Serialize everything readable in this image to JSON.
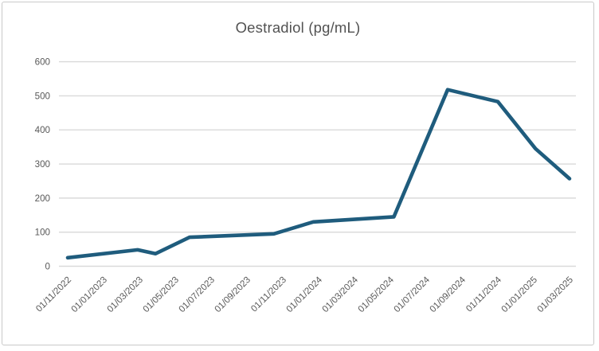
{
  "chart": {
    "title": "Oestradiol (pg/mL)"
  },
  "chart_data": {
    "type": "line",
    "title": "Oestradiol (pg/mL)",
    "xlabel": "",
    "ylabel": "",
    "ylim": [
      0,
      600
    ],
    "y_ticks": [
      0,
      100,
      200,
      300,
      400,
      500,
      600
    ],
    "x_tick_labels": [
      "01/11/2022",
      "01/01/2023",
      "01/03/2023",
      "01/05/2023",
      "01/07/2023",
      "01/09/2023",
      "01/11/2023",
      "01/01/2024",
      "01/03/2024",
      "01/05/2024",
      "01/07/2024",
      "01/09/2024",
      "01/11/2024",
      "01/01/2025",
      "01/03/2025"
    ],
    "x_tick_interval": "2 months",
    "grid": "horizontal",
    "legend": "none",
    "series": [
      {
        "name": "Oestradiol",
        "points": [
          {
            "approx_date": "01/11/2022",
            "x_months": 0,
            "y": 25
          },
          {
            "approx_date": "27/02/2023",
            "x_months": 3.9,
            "y": 48
          },
          {
            "approx_date": "29/03/2023",
            "x_months": 4.9,
            "y": 37
          },
          {
            "approx_date": "25/05/2023",
            "x_months": 6.8,
            "y": 85
          },
          {
            "approx_date": "16/10/2023",
            "x_months": 11.5,
            "y": 95
          },
          {
            "approx_date": "22/12/2023",
            "x_months": 13.7,
            "y": 130
          },
          {
            "approx_date": "07/05/2024",
            "x_months": 18.2,
            "y": 145
          },
          {
            "approx_date": "06/08/2024",
            "x_months": 21.2,
            "y": 518
          },
          {
            "approx_date": "01/11/2024",
            "x_months": 24,
            "y": 483
          },
          {
            "approx_date": "04/01/2025",
            "x_months": 26.1,
            "y": 345
          },
          {
            "approx_date": "01/03/2025",
            "x_months": 28,
            "y": 257
          }
        ]
      }
    ],
    "colors": {
      "line": "#1f5c7d",
      "gridline": "#d9d9d9",
      "tick_text": "#595959",
      "title_text": "#525252",
      "frame_border": "#c9c9c9",
      "background": "#ffffff"
    }
  }
}
